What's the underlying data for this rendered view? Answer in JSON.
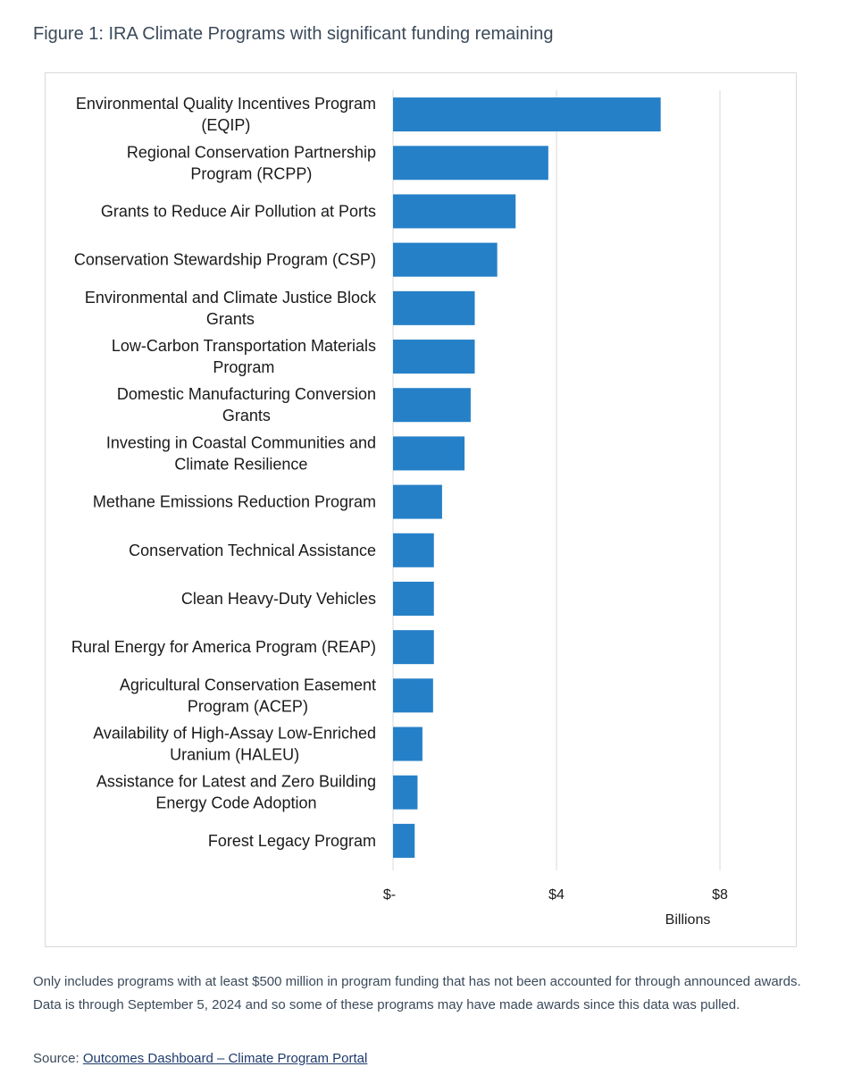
{
  "figure": {
    "title": "Figure 1: IRA Climate Programs with significant funding remaining"
  },
  "colors": {
    "bar": "#2580c8",
    "grid": "#d9d9d9",
    "text": "#1a1a1a"
  },
  "chart_data": {
    "type": "bar",
    "orientation": "horizontal",
    "title": "",
    "xlabel": "Billions",
    "ylabel": "",
    "xlim": [
      0,
      10
    ],
    "grid": true,
    "tick_values": [
      0,
      4,
      8
    ],
    "tick_labels": [
      "$-",
      "$4",
      "$8"
    ],
    "categories": [
      [
        "Environmental Quality Incentives Program",
        "(EQIP)"
      ],
      [
        "Regional Conservation Partnership",
        "Program (RCPP)"
      ],
      [
        "Grants to Reduce Air Pollution at Ports"
      ],
      [
        "Conservation Stewardship Program (CSP)"
      ],
      [
        "Environmental and Climate Justice Block",
        "Grants"
      ],
      [
        "Low-Carbon Transportation Materials",
        "Program"
      ],
      [
        "Domestic Manufacturing Conversion",
        "Grants"
      ],
      [
        "Investing in Coastal Communities and",
        "Climate Resilience"
      ],
      [
        "Methane Emissions Reduction Program"
      ],
      [
        "Conservation Technical Assistance"
      ],
      [
        "Clean Heavy-Duty Vehicles"
      ],
      [
        "Rural Energy for America Program (REAP)"
      ],
      [
        "Agricultural Conservation Easement",
        "Program (ACEP)"
      ],
      [
        "Availability of High-Assay Low-Enriched",
        "Uranium (HALEU)"
      ],
      [
        "Assistance for Latest and Zero Building",
        "Energy Code Adoption"
      ],
      [
        "Forest Legacy Program"
      ]
    ],
    "values": [
      6.55,
      3.8,
      3.0,
      2.55,
      2.0,
      2.0,
      1.9,
      1.75,
      1.2,
      1.0,
      1.0,
      1.0,
      0.98,
      0.72,
      0.6,
      0.53
    ]
  },
  "note": "Only includes programs with at least $500 million in program funding that has not been accounted for through announced awards. Data is through September 5, 2024 and so some of these programs may have made awards since this data was pulled.",
  "source": {
    "prefix": "Source: ",
    "link_text": "Outcomes Dashboard – Climate Program Portal"
  }
}
